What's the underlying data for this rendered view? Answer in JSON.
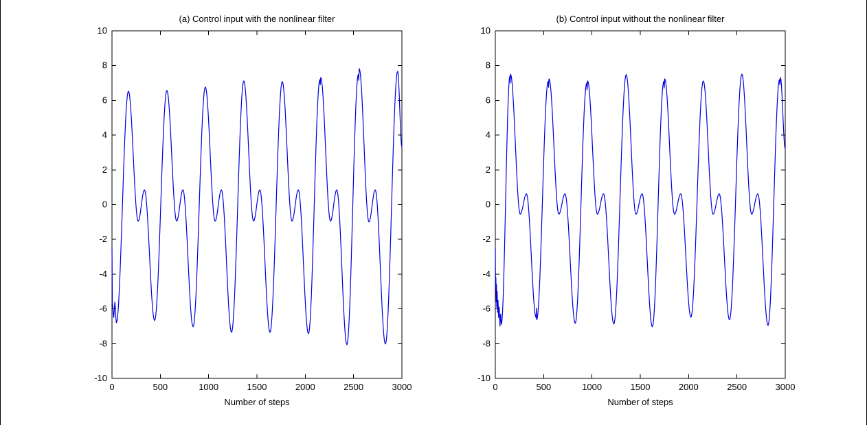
{
  "window": {
    "background": "#ffffff",
    "edge_border_color": "#000000",
    "axis_color": "#000000",
    "text_color": "#000000"
  },
  "chart_data": [
    {
      "type": "line",
      "title": "(a)  Control input with the nonlinear filter",
      "xlabel": "Number of steps",
      "ylabel": "",
      "xlim": [
        0,
        3000
      ],
      "ylim": [
        -10,
        10
      ],
      "xticks": [
        0,
        500,
        1000,
        1500,
        2000,
        2500,
        3000
      ],
      "yticks": [
        -10,
        -8,
        -6,
        -4,
        -2,
        0,
        2,
        4,
        6,
        8,
        10
      ],
      "grid": false,
      "legend": null,
      "line_color": "#0000dd",
      "series": [
        {
          "name": "control input with nonlinear filter",
          "keypoints": [
            [
              0,
              -2.45
            ],
            [
              4,
              -5.7
            ],
            [
              18,
              -6.5
            ],
            [
              30,
              -5.6
            ],
            [
              45,
              -6.8
            ],
            [
              170,
              6.53
            ],
            [
              271,
              -0.95
            ],
            [
              336,
              0.85
            ],
            [
              441,
              -6.67
            ],
            [
              568,
              6.57
            ],
            [
              669,
              -0.95
            ],
            [
              734,
              0.85
            ],
            [
              839,
              -7.03
            ],
            [
              966,
              6.77
            ],
            [
              1067,
              -0.95
            ],
            [
              1132,
              0.85
            ],
            [
              1237,
              -7.35
            ],
            [
              1364,
              7.12
            ],
            [
              1465,
              -0.95
            ],
            [
              1530,
              0.85
            ],
            [
              1635,
              -7.35
            ],
            [
              1762,
              7.08
            ],
            [
              1863,
              -0.95
            ],
            [
              1928,
              0.85
            ],
            [
              2033,
              -7.43
            ],
            [
              2152,
              7.2
            ],
            [
              2155,
              6.9
            ],
            [
              2160,
              7.32
            ],
            [
              2261,
              -0.95
            ],
            [
              2326,
              0.85
            ],
            [
              2431,
              -8.06
            ],
            [
              2550,
              7.5
            ],
            [
              2553,
              7.15
            ],
            [
              2558,
              7.83
            ],
            [
              2659,
              -1.0
            ],
            [
              2724,
              0.85
            ],
            [
              2829,
              -8.02
            ],
            [
              2956,
              7.67
            ],
            [
              3000,
              3.3
            ]
          ]
        }
      ]
    },
    {
      "type": "line",
      "title": "(b)  Control input without the nonlinear filter",
      "xlabel": "Number of steps",
      "ylabel": "",
      "xlim": [
        0,
        3000
      ],
      "ylim": [
        -10,
        10
      ],
      "xticks": [
        0,
        500,
        1000,
        1500,
        2000,
        2500,
        3000
      ],
      "yticks": [
        -10,
        -8,
        -6,
        -4,
        -2,
        0,
        2,
        4,
        6,
        8,
        10
      ],
      "grid": false,
      "legend": null,
      "line_color": "#0000dd",
      "series": [
        {
          "name": "control input without nonlinear filter",
          "keypoints": [
            [
              0,
              -2.5
            ],
            [
              3,
              -5.0
            ],
            [
              6,
              -4.2
            ],
            [
              9,
              -5.6
            ],
            [
              12,
              -4.6
            ],
            [
              15,
              -5.9
            ],
            [
              19,
              -5.0
            ],
            [
              23,
              -6.2
            ],
            [
              28,
              -5.5
            ],
            [
              34,
              -6.5
            ],
            [
              40,
              -5.9
            ],
            [
              48,
              -7.0
            ],
            [
              55,
              -6.3
            ],
            [
              62,
              -6.9
            ],
            [
              151,
              7.4
            ],
            [
              154,
              7.0
            ],
            [
              157,
              7.51
            ],
            [
              258,
              -0.55
            ],
            [
              322,
              0.62
            ],
            [
              422,
              -6.5
            ],
            [
              425,
              -5.95
            ],
            [
              428,
              -6.63
            ],
            [
              547,
              7.1
            ],
            [
              550,
              6.75
            ],
            [
              556,
              7.24
            ],
            [
              657,
              -0.55
            ],
            [
              721,
              0.62
            ],
            [
              827,
              -6.83
            ],
            [
              946,
              7.0
            ],
            [
              949,
              6.6
            ],
            [
              955,
              7.12
            ],
            [
              1056,
              -0.55
            ],
            [
              1120,
              0.62
            ],
            [
              1226,
              -6.87
            ],
            [
              1354,
              7.48
            ],
            [
              1455,
              -0.55
            ],
            [
              1519,
              0.62
            ],
            [
              1625,
              -7.03
            ],
            [
              1744,
              7.1
            ],
            [
              1747,
              6.7
            ],
            [
              1753,
              7.24
            ],
            [
              1854,
              -0.55
            ],
            [
              1918,
              0.62
            ],
            [
              2024,
              -6.48
            ],
            [
              2152,
              7.12
            ],
            [
              2253,
              -0.55
            ],
            [
              2317,
              0.62
            ],
            [
              2423,
              -6.63
            ],
            [
              2551,
              7.51
            ],
            [
              2652,
              -0.55
            ],
            [
              2716,
              0.62
            ],
            [
              2822,
              -6.95
            ],
            [
              2941,
              7.2
            ],
            [
              2944,
              6.9
            ],
            [
              2950,
              7.32
            ],
            [
              3000,
              3.2
            ]
          ]
        }
      ]
    }
  ]
}
